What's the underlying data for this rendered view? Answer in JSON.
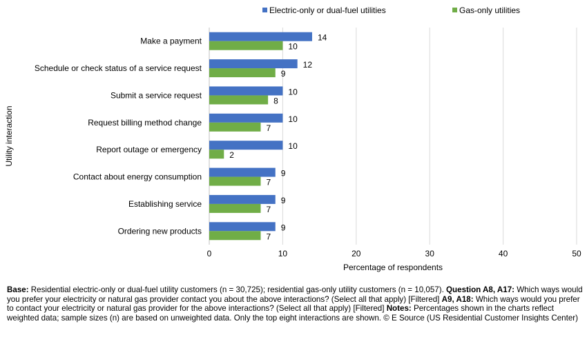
{
  "chart_data": {
    "type": "bar",
    "orientation": "horizontal",
    "categories": [
      "Make a payment",
      "Schedule or check status of a service request",
      "Submit a service request",
      "Request billing method change",
      "Report outage or emergency",
      "Contact about energy consumption",
      "Establishing service",
      "Ordering new products"
    ],
    "series": [
      {
        "name": "Electric-only or dual-fuel utilities",
        "color": "#4472C4",
        "values": [
          14,
          12,
          10,
          10,
          10,
          9,
          9,
          9
        ]
      },
      {
        "name": "Gas-only utilities",
        "color": "#70AD47",
        "values": [
          10,
          9,
          8,
          7,
          2,
          7,
          7,
          7
        ]
      }
    ],
    "xlabel": "Percentage of respondents",
    "ylabel": "Utility interaction",
    "xlim": [
      0,
      50
    ],
    "xticks": [
      0,
      10,
      20,
      30,
      40,
      50
    ],
    "grid": "vertical",
    "legend": "top"
  },
  "notes": [
    {
      "bold": "Base:",
      "text": " Residential electric-only or dual-fuel utility customers (n = 30,725); residential gas-only utility customers (n = 10,057). "
    },
    {
      "bold": "Question A8, A17:",
      "text": " Which ways would you prefer your electricity or natural gas provider contact you about the above interactions? (Select all that apply) [Filtered] "
    },
    {
      "bold": "A9, A18:",
      "text": " Which ways would you prefer to contact your electricity or natural gas provider for the above interactions? (Select all that apply) [Filtered] "
    },
    {
      "bold": "Notes:",
      "text": " Percentages shown in the charts reflect weighted data; sample sizes (n) are based on unweighted data. Only the top eight interactions are shown. © E Source (US Residential Customer Insights Center)"
    }
  ]
}
